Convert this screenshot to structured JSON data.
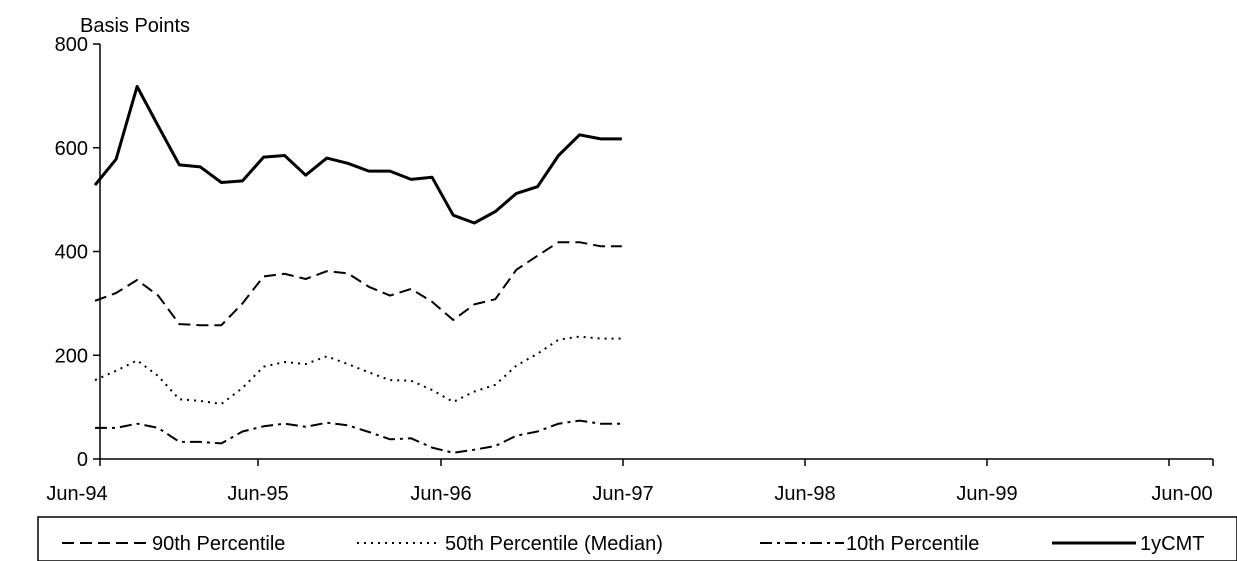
{
  "chart_data": {
    "type": "line",
    "unit_label": "Basis Points",
    "ylim": [
      0,
      800
    ],
    "yticks": [
      0,
      200,
      400,
      600,
      800
    ],
    "x": [
      0,
      1,
      2,
      3,
      4,
      5,
      6,
      7,
      8,
      9,
      10,
      11,
      12,
      13,
      14,
      15,
      16,
      17,
      18,
      19,
      20,
      21,
      22,
      23,
      24,
      25
    ],
    "x_tick_labels": [
      {
        "x": 0,
        "label": "Jun-94"
      },
      {
        "x": 4,
        "label": "Jun-95"
      },
      {
        "x": 8,
        "label": "Jun-96"
      },
      {
        "x": 12,
        "label": "Jun-97"
      },
      {
        "x": 16,
        "label": "Jun-98"
      },
      {
        "x": 20,
        "label": "Jun-99"
      },
      {
        "x": 24,
        "label": "Jun-00"
      }
    ],
    "series": [
      {
        "name": "90th Percentile",
        "style": "dashed",
        "values": [
          305,
          320,
          345,
          315,
          260,
          258,
          258,
          300,
          352,
          357,
          347,
          362,
          358,
          332,
          315,
          328,
          303,
          268,
          298,
          308,
          365,
          392,
          418,
          418,
          410,
          410
        ]
      },
      {
        "name": "50th Percentile (Median)",
        "style": "dotted",
        "values": [
          152,
          170,
          190,
          160,
          115,
          112,
          106,
          137,
          178,
          187,
          183,
          198,
          183,
          167,
          152,
          151,
          133,
          110,
          130,
          143,
          180,
          203,
          230,
          236,
          232,
          232
        ]
      },
      {
        "name": "10th Percentile",
        "style": "dashdot",
        "values": [
          60,
          60,
          68,
          60,
          33,
          33,
          30,
          53,
          63,
          68,
          62,
          70,
          65,
          52,
          38,
          40,
          22,
          12,
          18,
          25,
          45,
          53,
          68,
          74,
          68,
          68
        ]
      },
      {
        "name": "1yCMT",
        "style": "solid",
        "values": [
          528,
          578,
          718,
          642,
          567,
          563,
          533,
          536,
          582,
          585,
          547,
          580,
          570,
          555,
          555,
          539,
          543,
          470,
          455,
          477,
          512,
          525,
          585,
          625,
          617,
          617
        ]
      }
    ],
    "legend_position": "bottom",
    "grid": false
  }
}
